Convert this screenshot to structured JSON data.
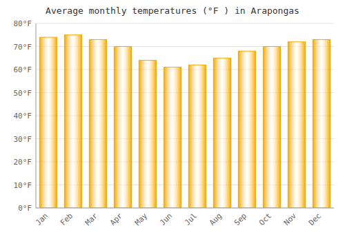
{
  "chart_data": {
    "type": "bar",
    "title": "Average monthly temperatures (°F ) in Arapongas",
    "categories": [
      "Jan",
      "Feb",
      "Mar",
      "Apr",
      "May",
      "Jun",
      "Jul",
      "Aug",
      "Sep",
      "Oct",
      "Nov",
      "Dec"
    ],
    "values": [
      74,
      75,
      73,
      70,
      64,
      61,
      62,
      65,
      68,
      70,
      72,
      73
    ],
    "color": "#F5A800",
    "ylim": [
      0,
      80
    ],
    "yticks": [
      {
        "value": 0,
        "label": "0°F"
      },
      {
        "value": 10,
        "label": "10°F"
      },
      {
        "value": 20,
        "label": "20°F"
      },
      {
        "value": 30,
        "label": "30°F"
      },
      {
        "value": 40,
        "label": "40°F"
      },
      {
        "value": 50,
        "label": "50°F"
      },
      {
        "value": 60,
        "label": "60°F"
      },
      {
        "value": 70,
        "label": "70°F"
      },
      {
        "value": 80,
        "label": "80°F"
      }
    ],
    "grid": true
  }
}
